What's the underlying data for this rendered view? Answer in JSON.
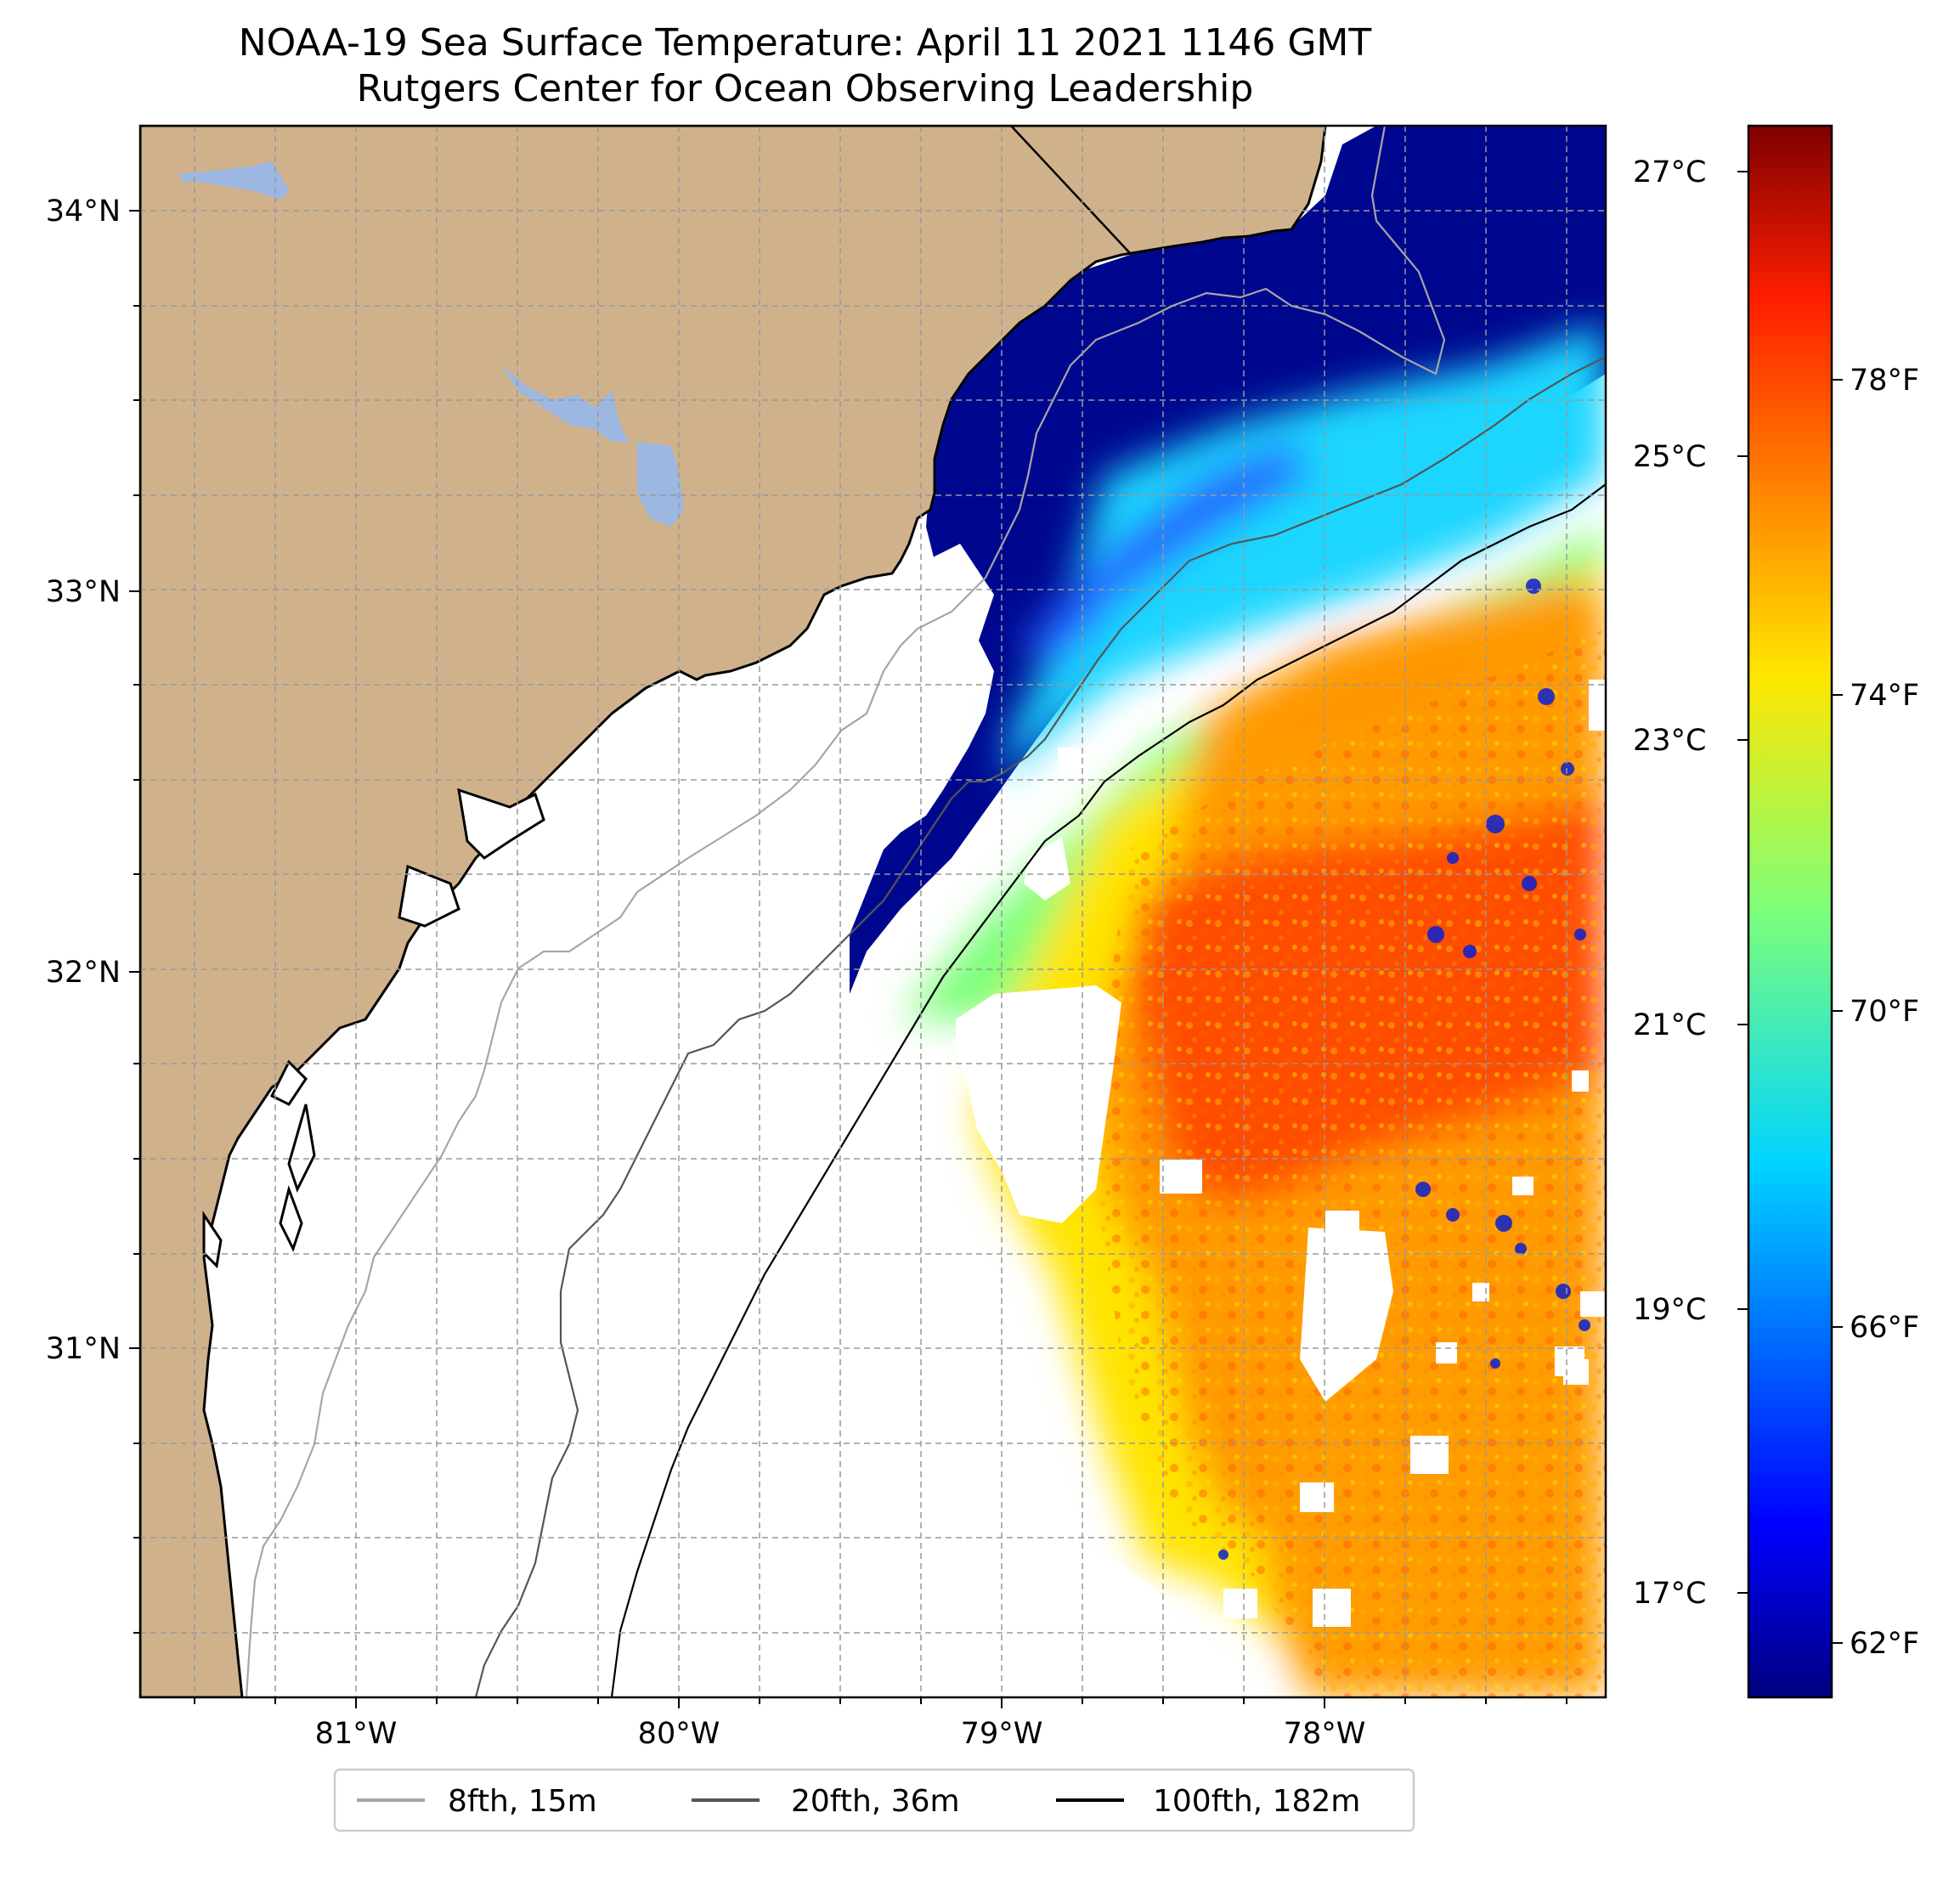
{
  "title": {
    "line1": "NOAA-19 Sea Surface Temperature: April 11 2021 1146 GMT",
    "line2": "Rutgers Center for Ocean Observing Leadership"
  },
  "map": {
    "lon_range": [
      -81.68,
      -77.2
    ],
    "lat_range": [
      30.08,
      34.22
    ],
    "lat_ticks": [
      "34°N",
      "33°N",
      "32°N",
      "31°N"
    ],
    "lon_ticks": [
      "81°W",
      "80°W",
      "79°W",
      "78°W"
    ],
    "colors": {
      "land": "#cfb28c",
      "inland_water": "#9bb7e2",
      "grid": "#999999"
    }
  },
  "colorbar": {
    "celsius_ticks": [
      "27°C",
      "25°C",
      "23°C",
      "21°C",
      "19°C",
      "17°C"
    ],
    "fahrenheit_ticks": [
      "78°F",
      "74°F",
      "70°F",
      "66°F",
      "62°F"
    ],
    "colormap": "jet",
    "range_f": [
      61.3,
      81.5
    ]
  },
  "legend": {
    "items": [
      {
        "label": "8fth, 15m",
        "color": "#a6a6a6"
      },
      {
        "label": "20fth, 36m",
        "color": "#555555"
      },
      {
        "label": "100fth, 182m",
        "color": "#000000"
      }
    ]
  }
}
